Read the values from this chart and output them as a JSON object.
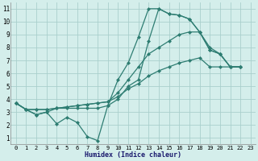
{
  "xlabel": "Humidex (Indice chaleur)",
  "background_color": "#d4eeeb",
  "grid_color": "#aacfcc",
  "line_color": "#2e7d72",
  "xlim": [
    -0.5,
    23.5
  ],
  "ylim": [
    0.5,
    11.5
  ],
  "xticks": [
    0,
    1,
    2,
    3,
    4,
    5,
    6,
    7,
    8,
    9,
    10,
    11,
    12,
    13,
    14,
    15,
    16,
    17,
    18,
    19,
    20,
    21,
    22,
    23
  ],
  "yticks": [
    1,
    2,
    3,
    4,
    5,
    6,
    7,
    8,
    9,
    10,
    11
  ],
  "series": [
    [
      3.7,
      3.2,
      2.8,
      3.0,
      2.1,
      2.6,
      2.2,
      1.1,
      0.8,
      3.5,
      5.5,
      6.8,
      8.8,
      11.0,
      11.0,
      10.6,
      10.5,
      10.2,
      9.2,
      7.8,
      7.5,
      6.5,
      6.5
    ],
    [
      3.7,
      3.2,
      2.8,
      3.0,
      3.3,
      3.3,
      3.3,
      3.3,
      3.3,
      3.5,
      4.0,
      5.0,
      5.5,
      8.5,
      11.0,
      10.6,
      10.5,
      10.2,
      9.2,
      7.8,
      7.5,
      6.5,
      6.5
    ],
    [
      3.7,
      3.2,
      3.2,
      3.2,
      3.3,
      3.4,
      3.5,
      3.6,
      3.7,
      3.8,
      4.5,
      5.5,
      6.5,
      7.5,
      8.0,
      8.5,
      9.0,
      9.2,
      9.2,
      8.0,
      7.5,
      6.5,
      6.5
    ],
    [
      3.7,
      3.2,
      3.2,
      3.2,
      3.3,
      3.4,
      3.5,
      3.6,
      3.7,
      3.8,
      4.2,
      4.8,
      5.2,
      5.8,
      6.2,
      6.5,
      6.8,
      7.0,
      7.2,
      6.5,
      6.5,
      6.5,
      6.5
    ]
  ],
  "markersize": 2.5,
  "linewidth": 0.9,
  "xlabel_fontsize": 6,
  "tick_fontsize": 5,
  "xlabel_color": "#1a1a6e",
  "xlabel_fontweight": "bold"
}
